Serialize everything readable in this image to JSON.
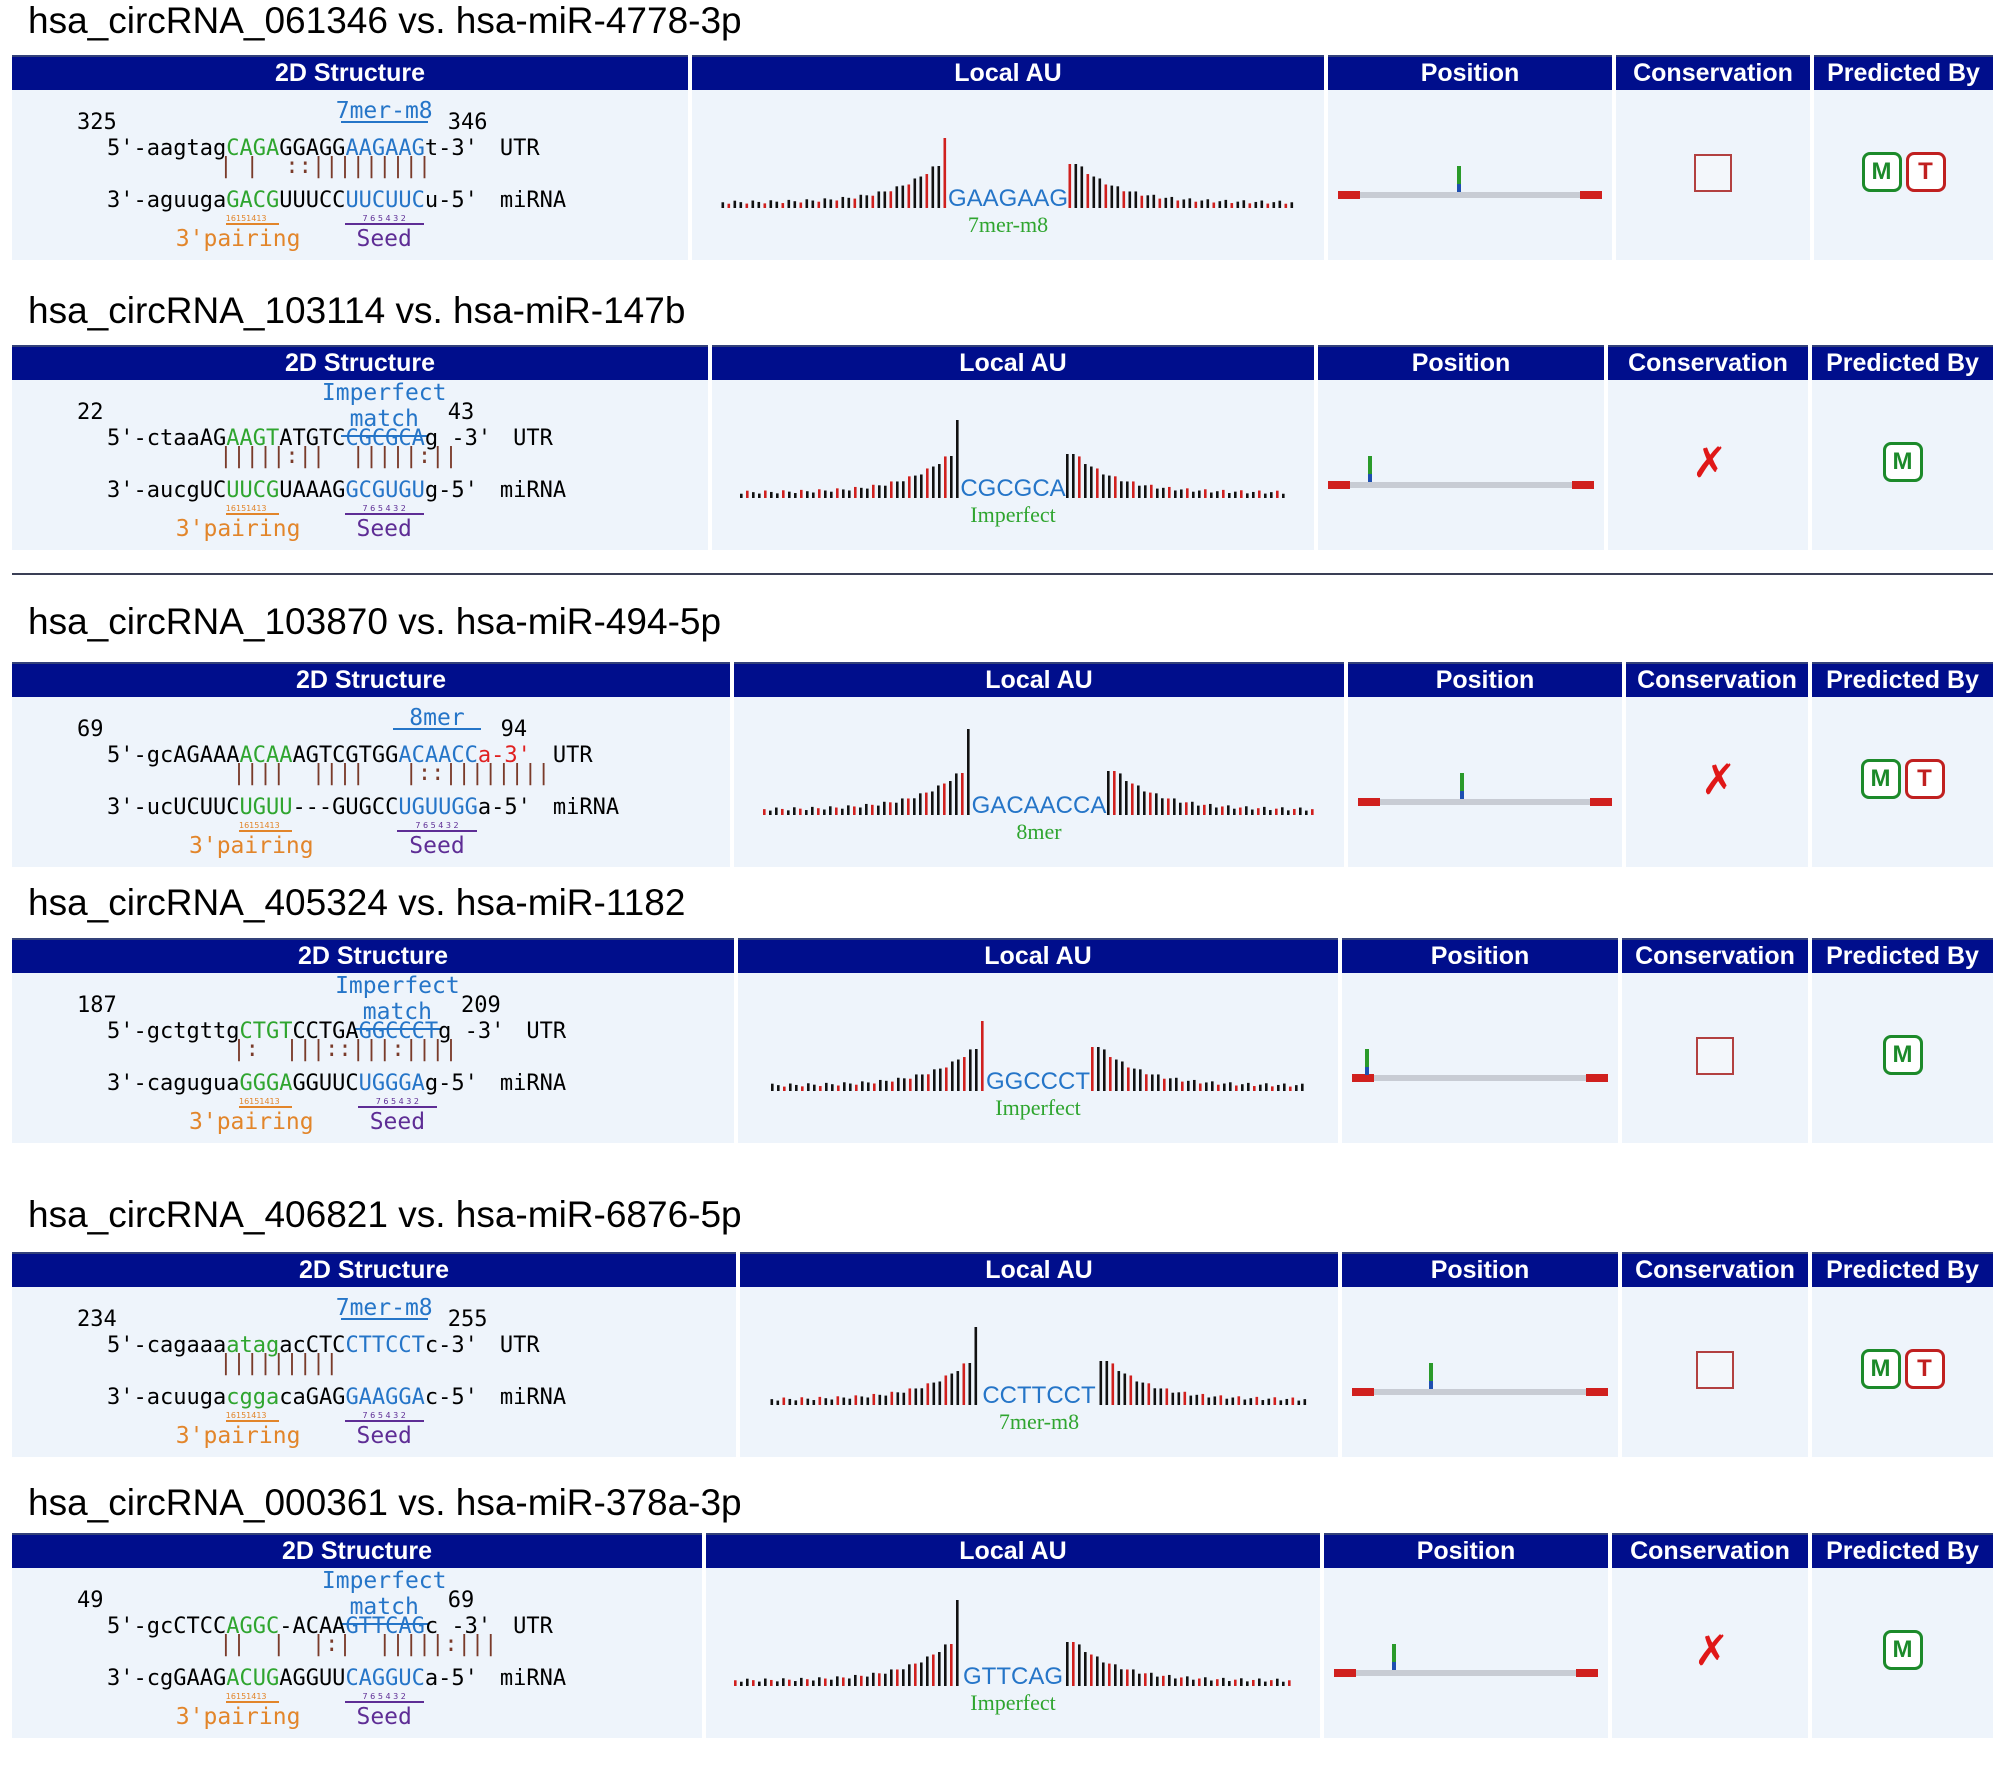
{
  "entries": [
    {
      "title": "hsa_circRNA_061346 vs. hsa-miR-4778-3p",
      "headers": {
        "structure": "2D Structure",
        "local_au": "Local AU",
        "position": "Position",
        "conservation": "Conservation",
        "predicted_by": "Predicted By"
      },
      "site_type": [
        "7mer-m8"
      ],
      "start": "325",
      "end": "346",
      "utr": {
        "prefix": "5'-aagtag",
        "pairing": "CAGA",
        "mid": "GGAGG",
        "seed": "AAGAAG",
        "tail": "t-3'",
        "label": "UTR"
      },
      "bonds": "| |  ::|||||||||",
      "mirna": {
        "prefix": "3'-aguuga",
        "pairing": "GACG",
        "mid": "UUUCC",
        "seed": "UUCUUC",
        "tail": "u-5'",
        "label": "miRNA"
      },
      "pairing_label": "3'pairing",
      "seed_label": "Seed",
      "pairing_digits": "16151413",
      "seed_digits": "7 6 5 4 3 2",
      "au_seq": "GAAGAAG",
      "au_type": "7mer-m8",
      "conservation": "unchecked",
      "predicted": [
        "M",
        "T"
      ]
    },
    {
      "title": "hsa_circRNA_103114 vs. hsa-miR-147b",
      "headers": {
        "structure": "2D Structure",
        "local_au": "Local AU",
        "position": "Position",
        "conservation": "Conservation",
        "predicted_by": "Predicted By"
      },
      "site_type": [
        "Imperfect",
        "match"
      ],
      "start": "22",
      "end": "43",
      "utr": {
        "prefix": "5'-ctaaAG",
        "pairing": "AAGT",
        "mid": "ATGTC",
        "seed": "CGCGCA",
        "tail": "g -3'",
        "label": "UTR"
      },
      "bonds": "|||||:||  |||||:||",
      "mirna": {
        "prefix": "3'-aucgUC",
        "pairing": "UUCG",
        "mid": "UAAAG",
        "seed": "GCGUGU",
        "tail": "g-5'",
        "label": "miRNA"
      },
      "pairing_label": "3'pairing",
      "seed_label": "Seed",
      "pairing_digits": "16151413",
      "seed_digits": "7 6 5 4 3 2",
      "au_seq": "CGCGCA",
      "au_type": "Imperfect",
      "conservation": "x",
      "predicted": [
        "M"
      ]
    },
    {
      "title": "hsa_circRNA_103870 vs. hsa-miR-494-5p",
      "headers": {
        "structure": "2D Structure",
        "local_au": "Local AU",
        "position": "Position",
        "conservation": "Conservation",
        "predicted_by": "Predicted By"
      },
      "site_type": [
        "8mer"
      ],
      "start": "69",
      "end": "94",
      "utr": {
        "prefix": "5'-gcAGAAA",
        "pairing": "ACAA",
        "mid": "AGTCGTGG",
        "seed": "ACAACC",
        "tail": "a-3'",
        "label": "UTR"
      },
      "bonds": "||||  ||||   |::||||||||",
      "mirna": {
        "prefix": "3'-ucUCUUC",
        "pairing": "UGUU",
        "mid": "---GUGCC",
        "seed": "UGUUGG",
        "tail": "a-5'",
        "label": "miRNA"
      },
      "pairing_label": "3'pairing",
      "seed_label": "Seed",
      "pairing_digits": "16151413",
      "seed_digits": "7 6 5 4 3 2",
      "au_seq": "GACAACCA",
      "au_type": "8mer",
      "conservation": "x",
      "predicted": [
        "M",
        "T"
      ]
    },
    {
      "title": "hsa_circRNA_405324 vs. hsa-miR-1182",
      "headers": {
        "structure": "2D Structure",
        "local_au": "Local AU",
        "position": "Position",
        "conservation": "Conservation",
        "predicted_by": "Predicted By"
      },
      "site_type": [
        "Imperfect",
        "match"
      ],
      "start": "187",
      "end": "209",
      "utr": {
        "prefix": "5'-gctgttg",
        "pairing": "CTGT",
        "mid": "CCTGA",
        "seed": "GGCCCT",
        "tail": "g -3'",
        "label": "UTR"
      },
      "bonds": "|:  |||::|||:||||",
      "mirna": {
        "prefix": "3'-cagugua",
        "pairing": "GGGA",
        "mid": "GGUUC",
        "seed": "UGGGA",
        "tail": "g-5'",
        "label": "miRNA"
      },
      "pairing_label": "3'pairing",
      "seed_label": "Seed",
      "pairing_digits": "16151413",
      "seed_digits": "7 6 5 4 3 2",
      "au_seq": "GGCCCT",
      "au_type": "Imperfect",
      "conservation": "unchecked",
      "predicted": [
        "M"
      ]
    },
    {
      "title": "hsa_circRNA_406821 vs. hsa-miR-6876-5p",
      "headers": {
        "structure": "2D Structure",
        "local_au": "Local AU",
        "position": "Position",
        "conservation": "Conservation",
        "predicted_by": "Predicted By"
      },
      "site_type": [
        "7mer-m8"
      ],
      "start": "234",
      "end": "255",
      "utr": {
        "prefix": "5'-cagaaa",
        "pairing": "atag",
        "mid": "acCTC",
        "seed": "CTTCCT",
        "tail": "c-3'",
        "label": "UTR"
      },
      "bonds": "|||||||||",
      "mirna": {
        "prefix": "3'-acuuga",
        "pairing": "cgga",
        "mid": "caGAG",
        "seed": "GAAGGA",
        "tail": "c-5'",
        "label": "miRNA"
      },
      "pairing_label": "3'pairing",
      "seed_label": "Seed",
      "pairing_digits": "16151413",
      "seed_digits": "7 6 5 4 3 2",
      "au_seq": "CCTTCCT",
      "au_type": "7mer-m8",
      "conservation": "unchecked",
      "predicted": [
        "M",
        "T"
      ]
    },
    {
      "title": "hsa_circRNA_000361 vs. hsa-miR-378a-3p",
      "headers": {
        "structure": "2D Structure",
        "local_au": "Local AU",
        "position": "Position",
        "conservation": "Conservation",
        "predicted_by": "Predicted By"
      },
      "site_type": [
        "Imperfect",
        "match"
      ],
      "start": "49",
      "end": "69",
      "utr": {
        "prefix": "5'-gcCTCC",
        "pairing": "AGGC",
        "mid": "-ACAA",
        "seed": "GTTCAG",
        "tail": "c -3'",
        "label": "UTR"
      },
      "bonds": "||  |  |:|  |||||:|||",
      "mirna": {
        "prefix": "3'-cgGAAG",
        "pairing": "ACUG",
        "mid": "AGGUU",
        "seed": "CAGGUC",
        "tail": "a-5'",
        "label": "miRNA"
      },
      "pairing_label": "3'pairing",
      "seed_label": "Seed",
      "pairing_digits": "16151413",
      "seed_digits": "7 6 5 4 3 2",
      "au_seq": "GTTCAG",
      "au_type": "Imperfect",
      "conservation": "x",
      "predicted": [
        "M"
      ]
    }
  ],
  "colors": {
    "header_bg": "#000e8c",
    "cell_bg": "#eef4fb",
    "pairing": "#2fa52f",
    "seed": "#2575c8",
    "pairing_label": "#e2852a",
    "seed_label": "#5e2d95",
    "badge_m": "#1c8a2a",
    "badge_t": "#c02020",
    "cross": "#e01818"
  }
}
